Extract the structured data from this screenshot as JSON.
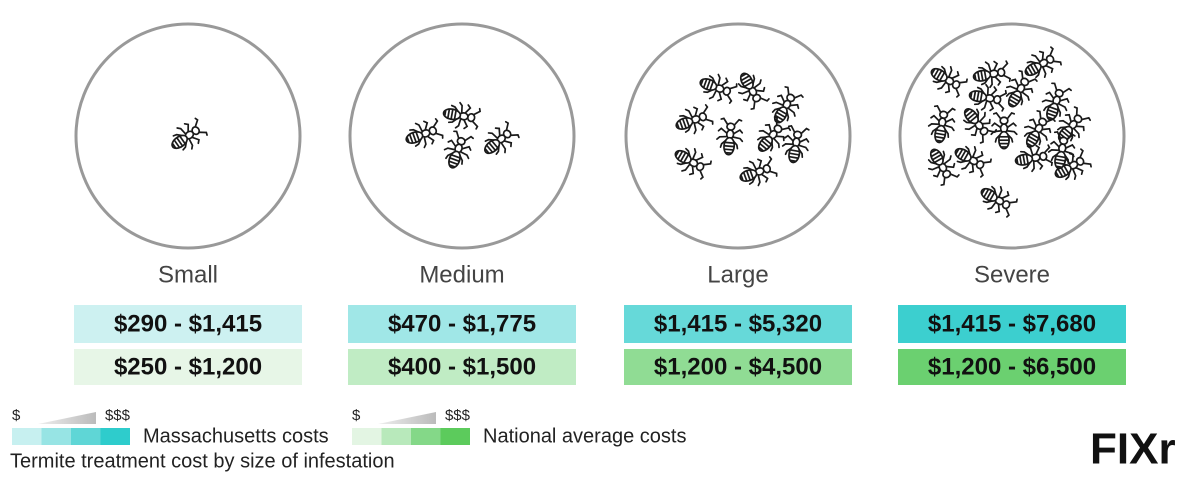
{
  "columns": [
    {
      "label": "Small",
      "local": "$290 - $1,415",
      "national": "$250 - $1,200"
    },
    {
      "label": "Medium",
      "local": "$470 - $1,775",
      "national": "$400 - $1,500"
    },
    {
      "label": "Large",
      "local": "$1,415 - $5,320",
      "national": "$1,200 - $4,500"
    },
    {
      "label": "Severe",
      "local": "$1,415 - $7,680",
      "national": "$1,200 - $6,500"
    }
  ],
  "legend": {
    "local": {
      "low": "$",
      "high": "$$$",
      "label": "Massachusetts costs"
    },
    "national": {
      "low": "$",
      "high": "$$$",
      "label": "National average costs"
    }
  },
  "caption": "Termite treatment cost by size of infestation",
  "logo": "FIXr"
}
